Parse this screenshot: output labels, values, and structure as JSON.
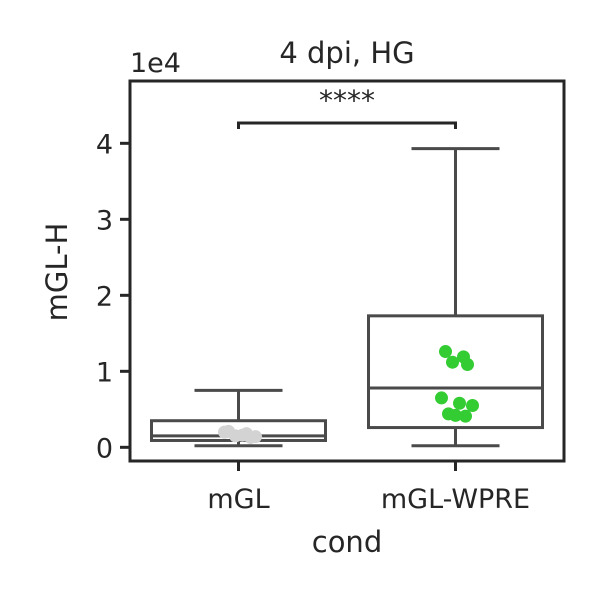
{
  "chart_data": {
    "type": "box",
    "title": "4 dpi, HG",
    "xlabel": "cond",
    "ylabel": "mGL-H",
    "offset_label": "1e4",
    "ylim": [
      -0.18,
      4.82
    ],
    "yticks": [
      0,
      1,
      2,
      3,
      4
    ],
    "ytick_labels": [
      "0",
      "1",
      "2",
      "3",
      "4"
    ],
    "categories": [
      "mGL",
      "mGL-WPRE"
    ],
    "boxes": [
      {
        "category": "mGL",
        "whisker_low": 0.02,
        "q1": 0.09,
        "median": 0.15,
        "q3": 0.35,
        "whisker_high": 0.75
      },
      {
        "category": "mGL-WPRE",
        "whisker_low": 0.02,
        "q1": 0.26,
        "median": 0.78,
        "q3": 1.73,
        "whisker_high": 3.93
      }
    ],
    "points": [
      {
        "category": "mGL",
        "color": "#d3d3d3",
        "values": [
          0.21,
          0.18,
          0.15,
          0.13,
          0.2,
          0.16,
          0.14
        ]
      },
      {
        "category": "mGL-WPRE",
        "color": "#33cc33",
        "values": [
          1.26,
          1.19,
          1.12,
          1.09,
          0.65,
          0.58,
          0.55,
          0.44,
          0.42,
          0.41
        ]
      }
    ],
    "significance": {
      "from": "mGL",
      "to": "mGL-WPRE",
      "label": "****"
    },
    "grid": false
  }
}
